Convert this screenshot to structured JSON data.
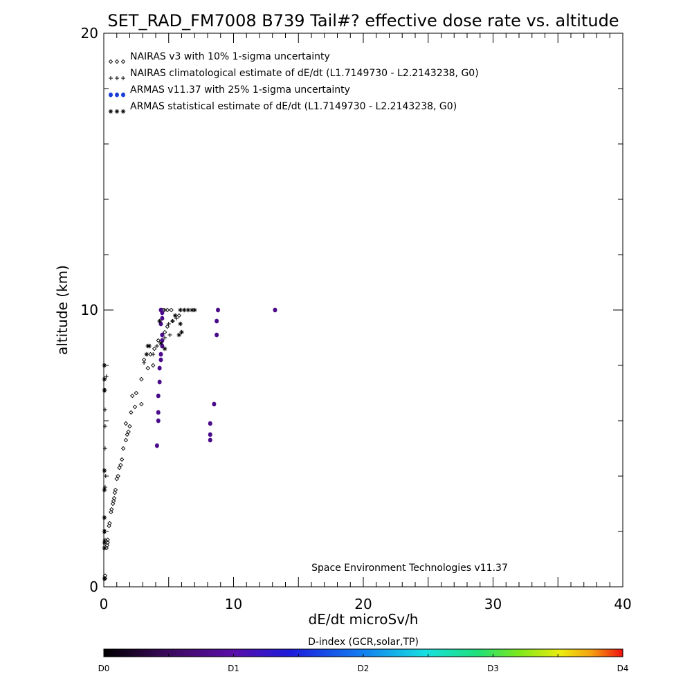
{
  "chart_data": {
    "type": "scatter",
    "title": "SET_RAD_FM7008  B739 Tail#? effective dose rate vs. altitude",
    "xlabel": "dE/dt microSv/h",
    "ylabel": "altitude (km)",
    "xlim": [
      0,
      40
    ],
    "ylim": [
      0,
      20
    ],
    "x_ticks": [
      "0",
      "10",
      "20",
      "30",
      "40"
    ],
    "y_ticks": [
      "0",
      "10",
      "20"
    ],
    "x_ticks_values": [
      0,
      10,
      20,
      30,
      40
    ],
    "y_ticks_values": [
      0,
      10,
      20
    ],
    "grid": false,
    "legend_position": "top-left",
    "annotation": "Space Environment Technologies v11.37",
    "colorbar": {
      "title": "D-index (GCR,solar,TP)",
      "labels": [
        "D0",
        "D1",
        "D2",
        "D3",
        "D4"
      ],
      "label_values": [
        0,
        0.25,
        0.5,
        0.75,
        1.0
      ]
    },
    "series": [
      {
        "name": "NAIRAS v3 with 10% 1-sigma uncertainty",
        "marker": "diamond",
        "color": "#000000",
        "points": [
          [
            0.1,
            0.3
          ],
          [
            0.1,
            0.4
          ],
          [
            0.2,
            1.4
          ],
          [
            0.25,
            1.5
          ],
          [
            0.3,
            1.6
          ],
          [
            0.3,
            1.7
          ],
          [
            0.4,
            2.2
          ],
          [
            0.45,
            2.3
          ],
          [
            0.55,
            2.7
          ],
          [
            0.6,
            2.8
          ],
          [
            0.7,
            3.0
          ],
          [
            0.75,
            3.1
          ],
          [
            0.8,
            3.2
          ],
          [
            0.85,
            3.4
          ],
          [
            0.9,
            3.5
          ],
          [
            1.0,
            3.9
          ],
          [
            1.1,
            4.0
          ],
          [
            1.2,
            4.3
          ],
          [
            1.3,
            4.4
          ],
          [
            1.4,
            4.6
          ],
          [
            1.5,
            5.0
          ],
          [
            1.7,
            5.3
          ],
          [
            1.8,
            5.5
          ],
          [
            1.9,
            5.6
          ],
          [
            2.0,
            5.8
          ],
          [
            1.7,
            5.9
          ],
          [
            2.1,
            6.3
          ],
          [
            2.4,
            6.5
          ],
          [
            2.9,
            6.6
          ],
          [
            2.2,
            6.9
          ],
          [
            2.5,
            7.0
          ],
          [
            2.9,
            7.5
          ],
          [
            3.4,
            7.9
          ],
          [
            3.8,
            8.0
          ],
          [
            3.1,
            8.2
          ],
          [
            3.6,
            8.4
          ],
          [
            3.9,
            8.6
          ],
          [
            4.2,
            8.9
          ],
          [
            4.5,
            9.1
          ],
          [
            4.7,
            9.2
          ],
          [
            4.9,
            9.4
          ],
          [
            5.3,
            9.6
          ],
          [
            5.8,
            9.8
          ],
          [
            4.6,
            10.0
          ],
          [
            4.9,
            10.0
          ],
          [
            5.2,
            10.0
          ]
        ]
      },
      {
        "name": "NAIRAS climatological estimate of dE/dt (L1.7149730 - L2.2143238, G0)",
        "marker": "plus",
        "color": "#000000",
        "points": [
          [
            0.1,
            1.7
          ],
          [
            0.1,
            2.0
          ],
          [
            0.1,
            3.6
          ],
          [
            0.15,
            4.0
          ],
          [
            0.1,
            5.0
          ],
          [
            0.1,
            5.8
          ],
          [
            0.1,
            6.4
          ],
          [
            0.1,
            7.1
          ],
          [
            0.2,
            7.6
          ],
          [
            3.1,
            8.1
          ],
          [
            3.8,
            8.4
          ],
          [
            4.1,
            8.7
          ],
          [
            4.7,
            9.0
          ],
          [
            5.1,
            9.1
          ],
          [
            5.0,
            9.5
          ],
          [
            5.3,
            9.6
          ],
          [
            5.6,
            9.7
          ],
          [
            4.5,
            10.0
          ],
          [
            4.7,
            10.0
          ]
        ]
      },
      {
        "name": "ARMAS v11.37 with 25% 1-sigma uncertainty",
        "marker": "dot",
        "color": "#4a0b8a",
        "points": [
          [
            4.1,
            5.1
          ],
          [
            4.2,
            6.0
          ],
          [
            4.2,
            6.3
          ],
          [
            4.2,
            6.9
          ],
          [
            4.3,
            7.4
          ],
          [
            4.3,
            7.9
          ],
          [
            4.4,
            8.2
          ],
          [
            4.4,
            8.4
          ],
          [
            4.5,
            8.7
          ],
          [
            4.5,
            8.9
          ],
          [
            4.5,
            9.1
          ],
          [
            4.4,
            9.5
          ],
          [
            4.5,
            9.7
          ],
          [
            4.5,
            9.9
          ],
          [
            4.4,
            10.0
          ],
          [
            8.2,
            5.3
          ],
          [
            8.2,
            5.5
          ],
          [
            8.2,
            5.9
          ],
          [
            8.5,
            6.6
          ],
          [
            8.7,
            9.1
          ],
          [
            8.7,
            9.6
          ],
          [
            8.8,
            10.0
          ],
          [
            13.2,
            10.0
          ]
        ]
      },
      {
        "name": "ARMAS statistical estimate of dE/dt (L1.7149730 - L2.2143238, G0)",
        "marker": "star",
        "color": "#000000",
        "points": [
          [
            0.05,
            0.3
          ],
          [
            0.05,
            1.4
          ],
          [
            0.05,
            1.6
          ],
          [
            0.05,
            2.0
          ],
          [
            0.05,
            2.5
          ],
          [
            0.05,
            3.5
          ],
          [
            0.05,
            4.2
          ],
          [
            0.05,
            7.1
          ],
          [
            0.05,
            7.5
          ],
          [
            0.05,
            8.0
          ],
          [
            3.3,
            8.4
          ],
          [
            3.4,
            8.7
          ],
          [
            3.5,
            8.7
          ],
          [
            4.4,
            8.8
          ],
          [
            4.7,
            8.6
          ],
          [
            5.8,
            9.1
          ],
          [
            6.0,
            9.2
          ],
          [
            5.9,
            9.5
          ],
          [
            4.3,
            9.6
          ],
          [
            5.5,
            9.8
          ],
          [
            5.9,
            10.0
          ],
          [
            6.2,
            10.0
          ],
          [
            6.5,
            10.0
          ],
          [
            6.8,
            10.0
          ],
          [
            7.0,
            10.0
          ]
        ]
      }
    ]
  }
}
